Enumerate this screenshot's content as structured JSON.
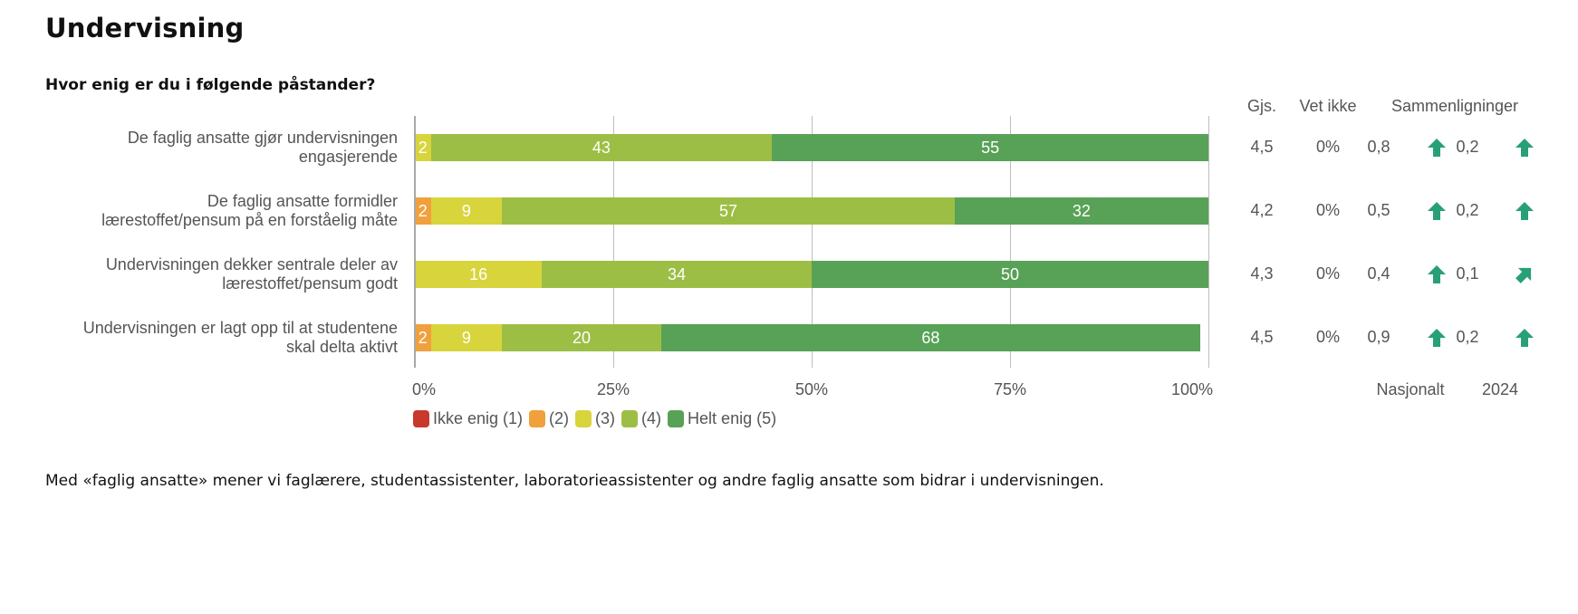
{
  "page": {
    "title": "Undervisning",
    "question": "Hvor enig er du i følgende påstander?",
    "footnote": "Med «faglig ansatte» mener vi faglærere, studentassistenter, laboratorieassistenter og andre faglig ansatte som bidrar i undervisningen."
  },
  "columns": {
    "mean": "Gjs.",
    "dont_know": "Vet ikke",
    "comparisons": "Sammenligninger",
    "national": "Nasjonalt",
    "year": "2024"
  },
  "chart_data": {
    "type": "bar",
    "orientation": "horizontal",
    "stacked": true,
    "title": "Hvor enig er du i følgende påstander?",
    "xlabel": "",
    "ylabel": "",
    "xlim": [
      0,
      100
    ],
    "x_ticks": [
      "0%",
      "25%",
      "50%",
      "75%",
      "100%"
    ],
    "x_tick_values": [
      0,
      25,
      50,
      75,
      100
    ],
    "grid": true,
    "legend_position": "bottom-left",
    "categories": [
      "De faglig ansatte gjør undervisningen engasjerende",
      "De faglig ansatte formidler lærestoffet/pensum på en forståelig måte",
      "Undervisningen dekker sentrale deler av lærestoffet/pensum godt",
      "Undervisningen er lagt opp til at studentene skal delta aktivt"
    ],
    "category_lines": [
      [
        "De faglig ansatte gjør undervisningen",
        "engasjerende"
      ],
      [
        "De faglig ansatte formidler",
        "lærestoffet/pensum på en forståelig måte"
      ],
      [
        "Undervisningen dekker sentrale deler av",
        "lærestoffet/pensum godt"
      ],
      [
        "Undervisningen er lagt opp til at studentene",
        "skal delta aktivt"
      ]
    ],
    "series": [
      {
        "name": "Ikke enig (1)",
        "color": "#c8392b",
        "values": [
          0,
          0,
          0,
          0
        ]
      },
      {
        "name": "(2)",
        "color": "#f0a03c",
        "values": [
          0,
          2,
          0,
          2
        ]
      },
      {
        "name": "(3)",
        "color": "#d8d43c",
        "values": [
          2,
          9,
          16,
          9
        ]
      },
      {
        "name": "(4)",
        "color": "#9dbe45",
        "values": [
          43,
          57,
          34,
          20
        ]
      },
      {
        "name": "Helt enig (5)",
        "color": "#58a257",
        "values": [
          55,
          32,
          50,
          68
        ]
      }
    ],
    "rows_side": [
      {
        "mean": "4,5",
        "dont_know": "0%",
        "national": "0,8",
        "national_trend": "up",
        "year": "0,2",
        "year_trend": "up"
      },
      {
        "mean": "4,2",
        "dont_know": "0%",
        "national": "0,5",
        "national_trend": "up",
        "year": "0,2",
        "year_trend": "up"
      },
      {
        "mean": "4,3",
        "dont_know": "0%",
        "national": "0,4",
        "national_trend": "up",
        "year": "0,1",
        "year_trend": "up-right"
      },
      {
        "mean": "4,5",
        "dont_know": "0%",
        "national": "0,9",
        "national_trend": "up",
        "year": "0,2",
        "year_trend": "up"
      }
    ],
    "arrow_color": "#27a07a"
  }
}
